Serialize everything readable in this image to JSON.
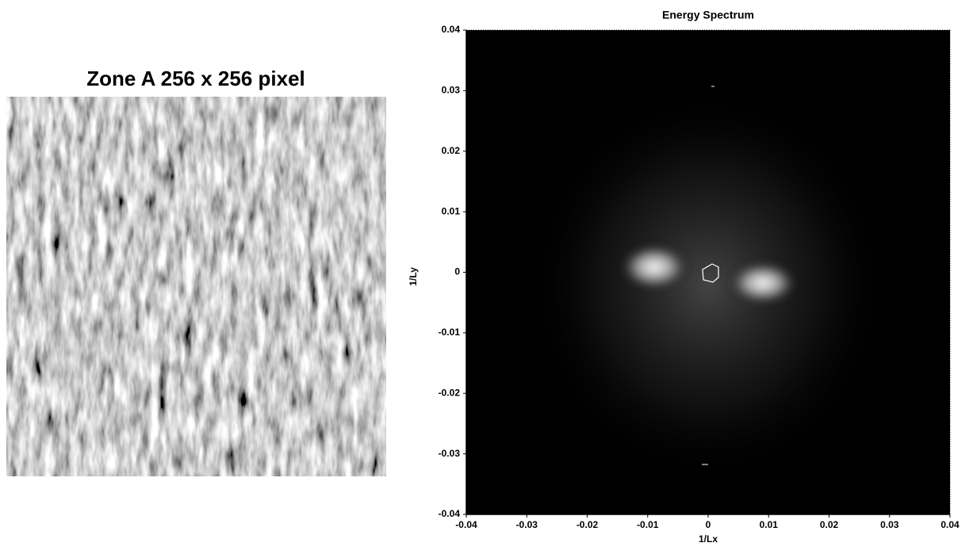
{
  "chart_data": [
    {
      "type": "image",
      "title": "Zone A 256 x 256 pixel"
    },
    {
      "type": "spectrum",
      "title": "Energy Spectrum",
      "xlabel": "1/Lx",
      "ylabel": "1/Ly",
      "xlim": [
        -0.04,
        0.04
      ],
      "ylim": [
        -0.04,
        0.04
      ],
      "xticks": [
        -0.04,
        -0.03,
        -0.02,
        -0.01,
        0,
        0.01,
        0.02,
        0.03,
        0.04
      ],
      "yticks": [
        -0.04,
        -0.03,
        -0.02,
        -0.01,
        0,
        0.01,
        0.02,
        0.03,
        0.04
      ]
    }
  ]
}
